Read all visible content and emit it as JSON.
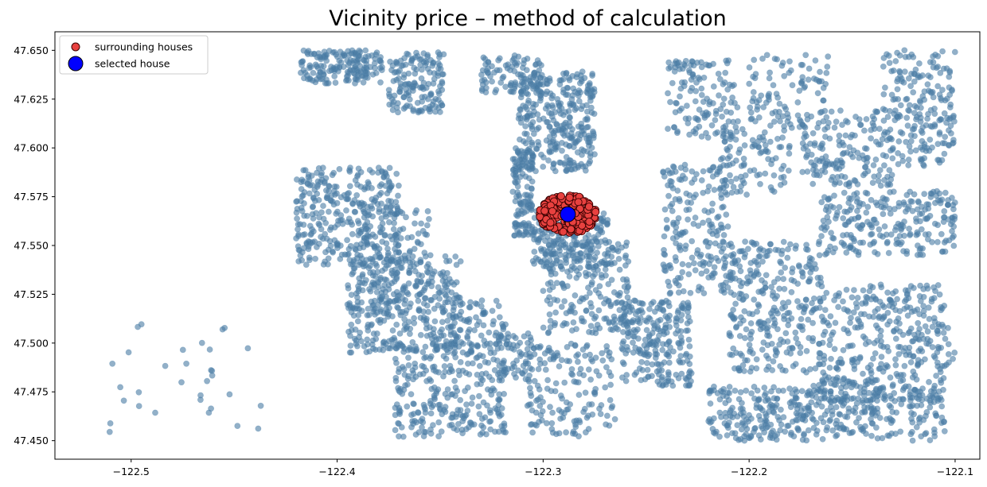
{
  "chart_data": {
    "type": "scatter",
    "title": "Vicinity price – method of calculation",
    "xlabel": "",
    "ylabel": "",
    "xlim": [
      -122.537,
      -122.088
    ],
    "ylim": [
      47.4405,
      47.6595
    ],
    "x_ticks": [
      -122.5,
      -122.4,
      -122.3,
      -122.2,
      -122.1
    ],
    "x_tick_labels": [
      "−122.5",
      "−122.4",
      "−122.3",
      "−122.2",
      "−122.1"
    ],
    "y_ticks": [
      47.45,
      47.475,
      47.5,
      47.525,
      47.55,
      47.575,
      47.6,
      47.625,
      47.65
    ],
    "y_tick_labels": [
      "47.450",
      "47.475",
      "47.500",
      "47.525",
      "47.550",
      "47.575",
      "47.600",
      "47.625",
      "47.650"
    ],
    "grid": false,
    "legend_position": "top-left",
    "legend": [
      {
        "label": "surrounding houses",
        "color": "#e8413f",
        "edge": "#3a0000"
      },
      {
        "label": "selected house",
        "color": "#0000ff",
        "edge": "#000000"
      }
    ],
    "background_points_color": "#4a7ca3",
    "background_clusters": [
      {
        "x": [
          -122.418,
          -122.378
        ],
        "y": [
          47.633,
          47.65
        ],
        "n": 170
      },
      {
        "x": [
          -122.375,
          -122.348
        ],
        "y": [
          47.618,
          47.649
        ],
        "n": 150
      },
      {
        "x": [
          -122.33,
          -122.3
        ],
        "y": [
          47.628,
          47.648
        ],
        "n": 90
      },
      {
        "x": [
          -122.312,
          -122.275
        ],
        "y": [
          47.588,
          47.64
        ],
        "n": 330
      },
      {
        "x": [
          -122.315,
          -122.305
        ],
        "y": [
          47.555,
          47.6
        ],
        "n": 120
      },
      {
        "x": [
          -122.305,
          -122.268
        ],
        "y": [
          47.538,
          47.568
        ],
        "n": 180
      },
      {
        "x": [
          -122.3,
          -122.258
        ],
        "y": [
          47.505,
          47.552
        ],
        "n": 220
      },
      {
        "x": [
          -122.262,
          -122.228
        ],
        "y": [
          47.478,
          47.522
        ],
        "n": 230
      },
      {
        "x": [
          -122.322,
          -122.305
        ],
        "y": [
          47.482,
          47.505
        ],
        "n": 60
      },
      {
        "x": [
          -122.31,
          -122.265
        ],
        "y": [
          47.452,
          47.5
        ],
        "n": 160
      },
      {
        "x": [
          -122.42,
          -122.37
        ],
        "y": [
          47.54,
          47.59
        ],
        "n": 320
      },
      {
        "x": [
          -122.395,
          -122.34
        ],
        "y": [
          47.495,
          47.545
        ],
        "n": 330
      },
      {
        "x": [
          -122.39,
          -122.355
        ],
        "y": [
          47.515,
          47.57
        ],
        "n": 140
      },
      {
        "x": [
          -122.372,
          -122.318
        ],
        "y": [
          47.452,
          47.5
        ],
        "n": 280
      },
      {
        "x": [
          -122.345,
          -122.318
        ],
        "y": [
          47.498,
          47.522
        ],
        "n": 70
      },
      {
        "x": [
          -122.242,
          -122.21
        ],
        "y": [
          47.525,
          47.592
        ],
        "n": 200
      },
      {
        "x": [
          -122.24,
          -122.205
        ],
        "y": [
          47.605,
          47.645
        ],
        "n": 130
      },
      {
        "x": [
          -122.215,
          -122.18
        ],
        "y": [
          47.575,
          47.61
        ],
        "n": 90
      },
      {
        "x": [
          -122.2,
          -122.16
        ],
        "y": [
          47.61,
          47.648
        ],
        "n": 100
      },
      {
        "x": [
          -122.175,
          -122.13
        ],
        "y": [
          47.58,
          47.62
        ],
        "n": 160
      },
      {
        "x": [
          -122.135,
          -122.1
        ],
        "y": [
          47.59,
          47.65
        ],
        "n": 200
      },
      {
        "x": [
          -122.165,
          -122.1
        ],
        "y": [
          47.545,
          47.578
        ],
        "n": 240
      },
      {
        "x": [
          -122.21,
          -122.165
        ],
        "y": [
          47.485,
          47.552
        ],
        "n": 300
      },
      {
        "x": [
          -122.165,
          -122.105
        ],
        "y": [
          47.47,
          47.53
        ],
        "n": 320
      },
      {
        "x": [
          -122.22,
          -122.17
        ],
        "y": [
          47.45,
          47.478
        ],
        "n": 200
      },
      {
        "x": [
          -122.17,
          -122.105
        ],
        "y": [
          47.45,
          47.48
        ],
        "n": 220
      },
      {
        "x": [
          -122.13,
          -122.1
        ],
        "y": [
          47.488,
          47.512
        ],
        "n": 40
      },
      {
        "x": [
          -122.515,
          -122.435
        ],
        "y": [
          47.45,
          47.51
        ],
        "n": 32
      }
    ],
    "surrounding_points": {
      "x": [
        -122.302,
        -122.274
      ],
      "y": [
        47.556,
        47.576
      ],
      "n": 210
    },
    "selected_point": {
      "x": -122.288,
      "y": 47.566
    }
  }
}
